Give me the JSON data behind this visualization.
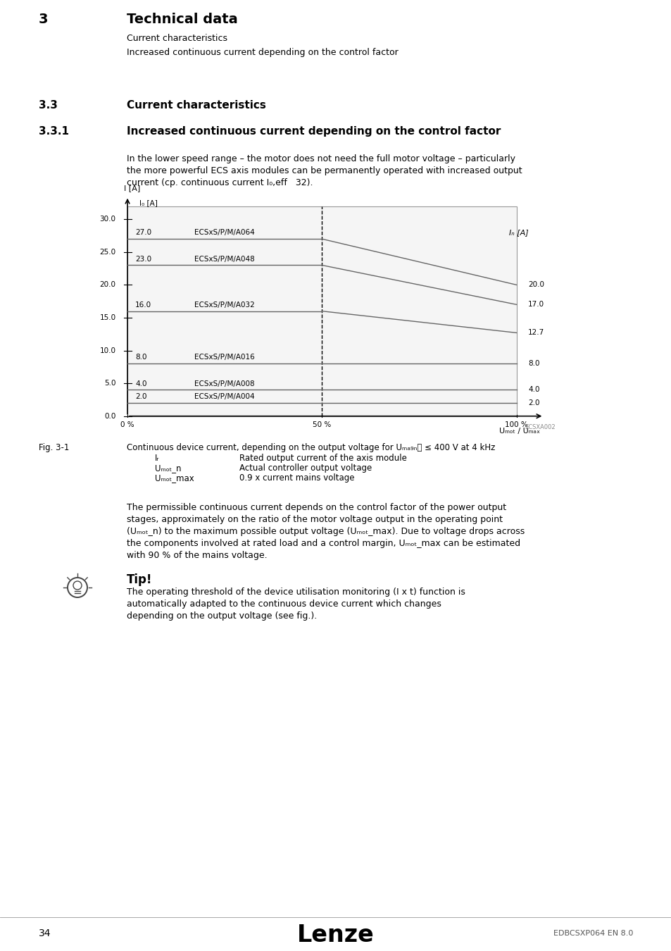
{
  "page_bg": "#ffffff",
  "header_bg": "#d4d4d4",
  "header_num": "3",
  "header_title": "Technical data",
  "header_sub1": "Current characteristics",
  "header_sub2": "Increased continuous current depending on the control factor",
  "section_num": "3.3",
  "section_title": "Current characteristics",
  "subsection_num": "3.3.1",
  "subsection_title": "Increased continuous current depending on the control factor",
  "yticks": [
    0.0,
    5.0,
    10.0,
    15.0,
    20.0,
    25.0,
    30.0
  ],
  "xtick_labels": [
    "0 %",
    "50 %",
    "100 %"
  ],
  "xtick_positions": [
    0.0,
    0.5,
    1.0
  ],
  "series": [
    {
      "name": "ECSxS/P/M/A064",
      "I0": 27.0,
      "IN": 20.0
    },
    {
      "name": "ECSxS/P/M/A048",
      "I0": 23.0,
      "IN": 17.0
    },
    {
      "name": "ECSxS/P/M/A032",
      "I0": 16.0,
      "IN": 12.7
    },
    {
      "name": "ECSxS/P/M/A016",
      "I0": 8.0,
      "IN": 8.0
    },
    {
      "name": "ECSxS/P/M/A008",
      "I0": 4.0,
      "IN": 4.0
    },
    {
      "name": "ECSxS/P/M/A004",
      "I0": 2.0,
      "IN": 2.0
    }
  ],
  "watermark": "ECSXA002",
  "footer_page": "34",
  "footer_logo": "Lenze",
  "footer_code": "EDBCSXP064 EN 8.0"
}
